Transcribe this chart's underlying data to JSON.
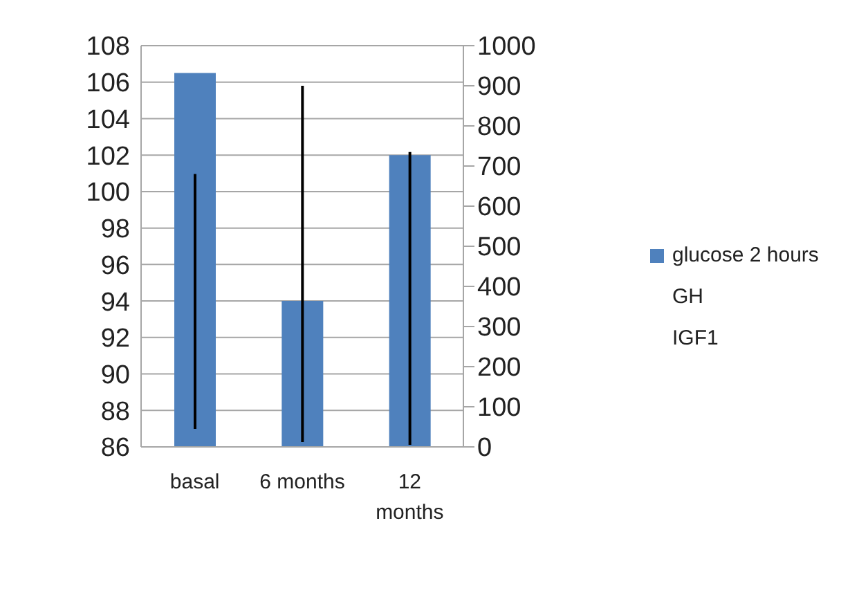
{
  "chart_data": {
    "type": "bar",
    "categories": [
      "basal",
      "6 months",
      "12 months"
    ],
    "series": [
      {
        "name": "glucose 2 hours",
        "type": "bar",
        "color": "#4f81bd",
        "values": [
          106.5,
          94,
          102
        ]
      },
      {
        "type": "bar",
        "axis": "y2",
        "color": "#000000",
        "base": [
          45,
          12,
          5
        ],
        "values": [
          635,
          888,
          730
        ]
      }
    ],
    "annotations": [
      "GH",
      "IGF1"
    ],
    "ylim": [
      86,
      108
    ],
    "yticks": [
      86,
      88,
      90,
      92,
      94,
      96,
      98,
      100,
      102,
      104,
      106,
      108
    ],
    "y2lim": [
      0,
      1000
    ],
    "y2ticks": [
      0,
      100,
      200,
      300,
      400,
      500,
      600,
      700,
      800,
      900,
      1000
    ],
    "grid": "y",
    "legend": "right"
  }
}
